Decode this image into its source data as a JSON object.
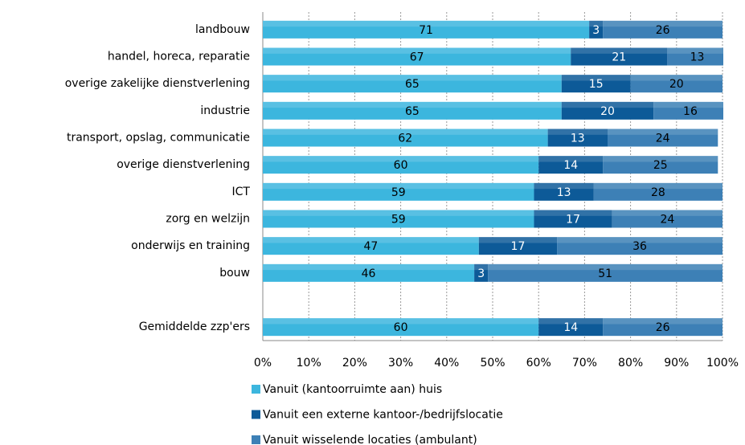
{
  "chart_data": {
    "type": "stacked_barh",
    "categories": [
      "landbouw",
      "handel, horeca, reparatie",
      "overige zakelijke dienstverlening",
      "industrie",
      "transport, opslag, communicatie",
      "overige dienstverlening",
      "ICT",
      "zorg en welzijn",
      "onderwijs en training",
      "bouw",
      null,
      "Gemiddelde zzp'ers"
    ],
    "series": [
      {
        "name": "Vanuit (kantoorruimte aan) huis",
        "color": "#3cb6de",
        "label_color": "#000000",
        "values": [
          71,
          67,
          65,
          65,
          62,
          60,
          59,
          59,
          47,
          46,
          null,
          60
        ]
      },
      {
        "name": "Vanuit een externe kantoor-/bedrijfslocatie",
        "color": "#0d5a98",
        "label_color": "#ffffff",
        "values": [
          3,
          21,
          15,
          20,
          13,
          14,
          13,
          17,
          17,
          3,
          null,
          14
        ]
      },
      {
        "name": "Vanuit wisselende locaties (ambulant)",
        "color": "#3d80b6",
        "label_color": "#000000",
        "values": [
          26,
          13,
          20,
          16,
          24,
          25,
          28,
          24,
          36,
          51,
          null,
          26
        ]
      }
    ],
    "xlim": [
      0,
      100
    ],
    "xticks": [
      {
        "value": 0,
        "label": "0%"
      },
      {
        "value": 10,
        "label": "10%"
      },
      {
        "value": 20,
        "label": "20%"
      },
      {
        "value": 30,
        "label": "30%"
      },
      {
        "value": 40,
        "label": "40%"
      },
      {
        "value": 50,
        "label": "50%"
      },
      {
        "value": 60,
        "label": "60%"
      },
      {
        "value": 70,
        "label": "70%"
      },
      {
        "value": 80,
        "label": "80%"
      },
      {
        "value": 90,
        "label": "90%"
      },
      {
        "value": 100,
        "label": "100%"
      }
    ],
    "grid": true,
    "legend": "bottom"
  }
}
